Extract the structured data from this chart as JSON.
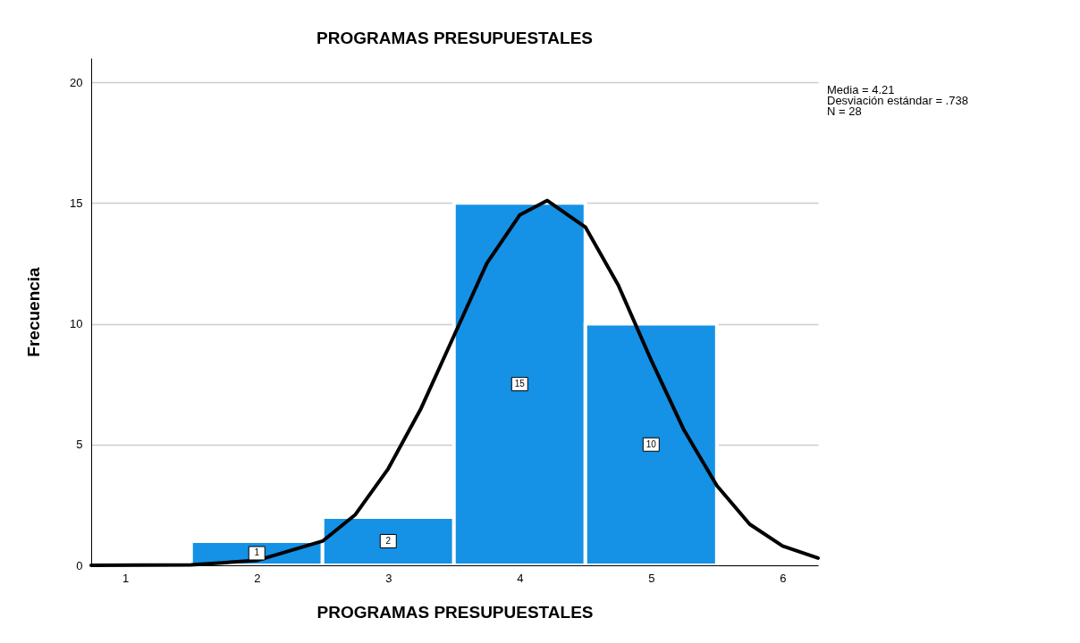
{
  "chart_data": {
    "type": "histogram",
    "title": "PROGRAMAS PRESUPUESTALES",
    "xlabel": "PROGRAMAS PRESUPUESTALES",
    "ylabel": "Frecuencia",
    "bins": [
      1.5,
      2.5,
      3.5,
      4.5,
      5.5
    ],
    "series": [
      {
        "color": "#1591e6",
        "values": [
          1,
          2,
          15,
          10
        ],
        "value_labels": [
          "1",
          "2",
          "15",
          "10"
        ]
      },
      {
        "type": "line",
        "color": "#000000",
        "x": [
          0.74,
          1.5,
          2,
          2.5,
          2.75,
          3,
          3.25,
          3.5,
          3.75,
          4,
          4.21,
          4.5,
          4.75,
          5,
          5.25,
          5.5,
          5.75,
          6,
          6.27
        ],
        "values": [
          0,
          0.02,
          0.2,
          1.0,
          2.1,
          4.0,
          6.5,
          9.5,
          12.5,
          14.5,
          15.1,
          14.0,
          11.6,
          8.5,
          5.6,
          3.3,
          1.7,
          0.8,
          0.3
        ]
      }
    ],
    "annotations": [
      "Media = 4.21",
      "Desviación estándar = .738",
      "N = 28"
    ],
    "xlim": [
      0.74,
      6.27
    ],
    "xticks": [
      1,
      2,
      3,
      4,
      5,
      6
    ],
    "ylim": [
      0,
      21
    ],
    "yticks": [
      0,
      5,
      10,
      15,
      20
    ],
    "grid": "y"
  }
}
